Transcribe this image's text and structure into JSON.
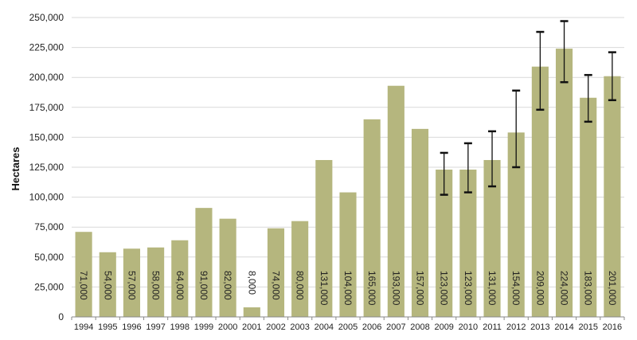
{
  "chart_data": {
    "type": "bar",
    "title": "",
    "xlabel": "",
    "ylabel": "Hectares",
    "ylim": [
      0,
      250000
    ],
    "yticks": [
      0,
      25000,
      50000,
      75000,
      100000,
      125000,
      150000,
      175000,
      200000,
      225000,
      250000
    ],
    "ytick_labels": [
      "0",
      "25,000",
      "50,000",
      "75,000",
      "100,000",
      "125,000",
      "150,000",
      "175,000",
      "200,000",
      "225,000",
      "250,000"
    ],
    "grid": true,
    "bar_color": "#b5b67e",
    "categories": [
      "1994",
      "1995",
      "1996",
      "1997",
      "1998",
      "1999",
      "2000",
      "2001",
      "2002",
      "2003",
      "2004",
      "2005",
      "2006",
      "2007",
      "2008",
      "2009",
      "2010",
      "2011",
      "2012",
      "2013",
      "2014",
      "2015",
      "2016"
    ],
    "values": [
      71000,
      54000,
      57000,
      58000,
      64000,
      91000,
      82000,
      8000,
      74000,
      80000,
      131000,
      104000,
      165000,
      193000,
      157000,
      123000,
      123000,
      131000,
      154000,
      209000,
      224000,
      183000,
      201000
    ],
    "data_labels": [
      "71,000",
      "54,000",
      "57,000",
      "58,000",
      "64,000",
      "91,000",
      "82,000",
      "8,000",
      "74,000",
      "80,000",
      "131,000",
      "104,000",
      "165,000",
      "193,000",
      "157,000",
      "123,000",
      "123,000",
      "131,000",
      "154,000",
      "209,000",
      "224,000",
      "183,000",
      "201,000"
    ],
    "error_bars": [
      null,
      null,
      null,
      null,
      null,
      null,
      null,
      null,
      null,
      null,
      null,
      null,
      null,
      null,
      null,
      [
        102000,
        137000
      ],
      [
        104000,
        145000
      ],
      [
        109000,
        155000
      ],
      [
        125000,
        189000
      ],
      [
        173000,
        238000
      ],
      [
        196000,
        247000
      ],
      [
        163000,
        202000
      ],
      [
        181000,
        221000
      ]
    ]
  }
}
